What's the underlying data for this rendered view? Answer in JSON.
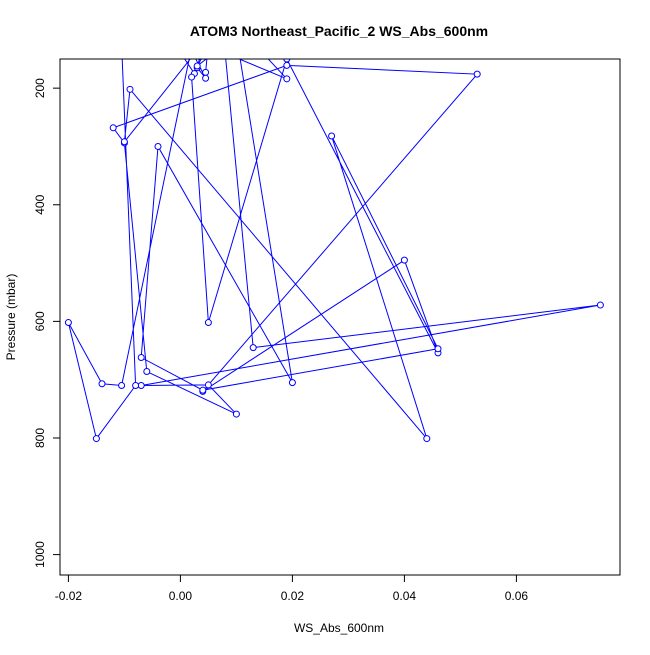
{
  "chart_data": {
    "type": "line",
    "title": "ATOM3 Northeast_Pacific_2 WS_Abs_600nm",
    "xlabel": "WS_Abs_600nm",
    "ylabel": "Pressure (mbar)",
    "xlim": [
      -0.0215,
      0.0785
    ],
    "ylim": [
      1035,
      150
    ],
    "y_reversed": true,
    "xticks": [
      -0.02,
      0.0,
      0.02,
      0.04,
      0.06
    ],
    "xtick_labels": [
      "-0.02",
      "0.00",
      "0.02",
      "0.04",
      "0.06"
    ],
    "yticks": [
      200,
      400,
      600,
      800,
      1000
    ],
    "ytick_labels": [
      "200",
      "400",
      "600",
      "800",
      "1000"
    ],
    "grid": false,
    "legend": "none",
    "color": "#0000ff",
    "marker": "open-circle",
    "series": [
      {
        "x": [
          0.0045,
          0.005,
          0.0025,
          0.0,
          0.0035,
          0.003,
          0.0045,
          0.0,
          0.0075,
          0.019,
          0.008,
          0.013,
          0.075,
          -0.007,
          0.005,
          0.01,
          -0.006,
          -0.01,
          -0.012,
          0.019,
          0.053,
          0.004,
          0.04,
          0.046,
          0.019,
          0.005,
          0.002,
          0.003,
          0.01,
          0.02,
          -0.004,
          -0.007,
          0.004,
          0.046,
          0.027,
          0.044,
          -0.009,
          -0.01,
          0.003,
          0.002,
          -0.0105,
          -0.014,
          -0.02,
          -0.015,
          -0.008,
          -0.0105
        ],
        "y": [
          173,
          122,
          175,
          139,
          146,
          165,
          183,
          98,
          66,
          184,
          140,
          645,
          572,
          710,
          709,
          759,
          686,
          294,
          268,
          161,
          176,
          720,
          495,
          654,
          150,
          602,
          181,
          162,
          110,
          705,
          300,
          662,
          718,
          647,
          282,
          801,
          202,
          292,
          135,
          130,
          710,
          707,
          602,
          801,
          710,
          125
        ]
      }
    ]
  }
}
